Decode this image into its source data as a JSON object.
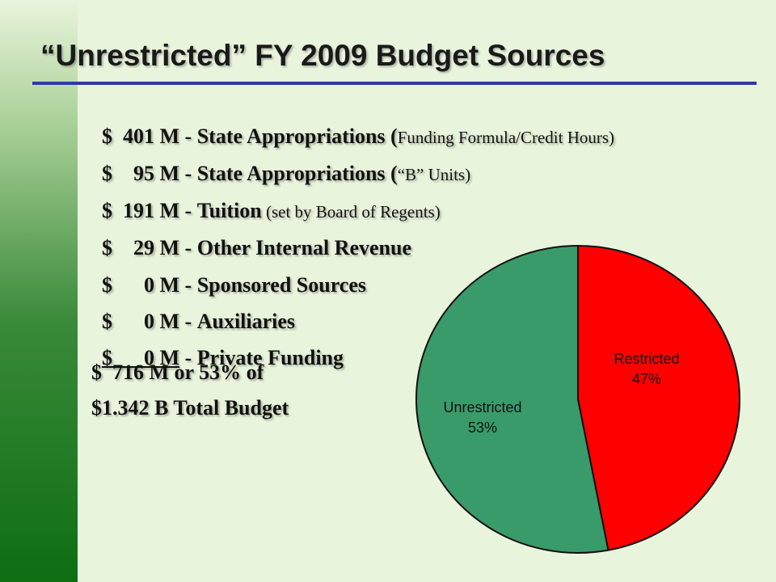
{
  "title": "“Unrestricted” FY 2009 Budget Sources",
  "items": [
    {
      "amount": "$  401 M",
      "sep": " - ",
      "label": "State Appropriations (",
      "note": "Funding Formula/Credit Hours)"
    },
    {
      "amount": "$    95 M",
      "sep": " - ",
      "label": "State Appropriations (",
      "note": "“B” Units)"
    },
    {
      "amount": "$  191 M",
      "sep": " - ",
      "label": "Tuition",
      "note": " (set by Board of Regents)"
    },
    {
      "amount": "$    29 M",
      "sep": " - ",
      "label": "Other Internal Revenue",
      "note": ""
    },
    {
      "amount": "$      0 M",
      "sep": " - ",
      "label": "Sponsored Sources",
      "note": ""
    },
    {
      "amount": "$      0 M",
      "sep": " - ",
      "label": "Auxiliaries",
      "note": ""
    },
    {
      "amount": "$      0 M",
      "sep": " - ",
      "label": "Private Funding",
      "note": ""
    }
  ],
  "total_line_1": "$  716 M or 53% of",
  "total_line_2": "$1.342 B Total Budget",
  "chart_data": {
    "type": "pie",
    "slices": [
      {
        "label": "Restricted",
        "value": 47,
        "value_label": "47%",
        "color": "#ff0000"
      },
      {
        "label": "Unrestricted",
        "value": 53,
        "value_label": "53%",
        "color": "#3a9b6a"
      }
    ],
    "start": "12 o'clock",
    "direction": "clockwise"
  }
}
